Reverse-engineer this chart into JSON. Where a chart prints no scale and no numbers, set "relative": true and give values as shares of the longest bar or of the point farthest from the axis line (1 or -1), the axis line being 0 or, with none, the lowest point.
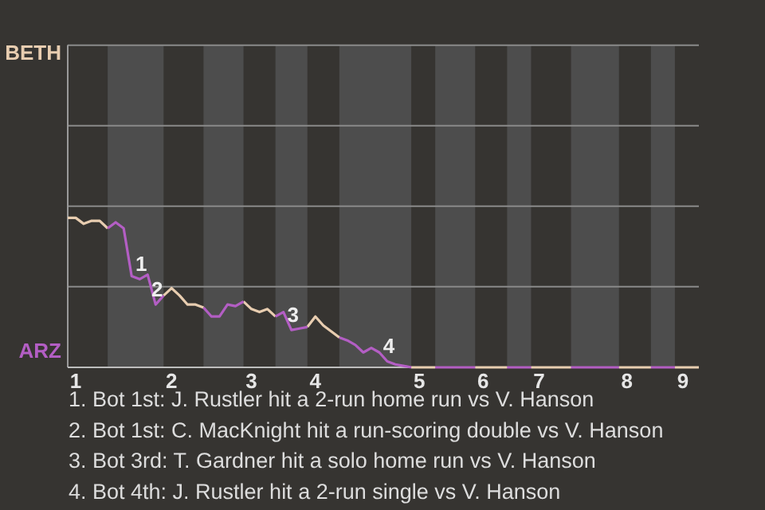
{
  "chart_data": {
    "type": "line",
    "relative": true,
    "categories": [
      null,
      "1",
      null,
      null,
      null,
      null,
      null,
      null,
      null,
      null,
      null,
      null,
      null,
      "2",
      null,
      null,
      null,
      null,
      null,
      null,
      null,
      null,
      null,
      "3",
      null,
      null,
      null,
      null,
      null,
      null,
      null,
      "4",
      null,
      null,
      null,
      null,
      null,
      null,
      null,
      null,
      null,
      null,
      null,
      null,
      "5",
      null,
      null,
      null,
      null,
      null,
      null,
      null,
      "6",
      null,
      null,
      null,
      null,
      null,
      null,
      "7",
      null,
      null,
      null,
      null,
      null,
      null,
      null,
      null,
      null,
      null,
      "8",
      null,
      null,
      null,
      null,
      null,
      null,
      "9",
      null,
      null
    ],
    "ref_lines": [
      {
        "axis": "y",
        "value": 0.539,
        "color": "#8a8a8a"
      },
      {
        "axis": "y",
        "value": 1.078,
        "color": "#8a8a8a"
      },
      {
        "axis": "y",
        "value": 1.616,
        "color": "#8a8a8a"
      },
      {
        "axis": "y",
        "value": 2.155,
        "color": "#8a8a8a"
      }
    ],
    "marker": "none",
    "series": [
      {
        "name": "BETH",
        "color": "#e8cdb0",
        "values": [
          1.0,
          1.0,
          0.96,
          0.98,
          0.98,
          0.93,
          null,
          null,
          null,
          null,
          null,
          null,
          0.48,
          0.53,
          0.48,
          0.42,
          0.42,
          0.4,
          null,
          null,
          null,
          null,
          0.44,
          0.39,
          0.37,
          0.39,
          0.34,
          null,
          null,
          null,
          0.27,
          0.34,
          0.28,
          0.24,
          0.2,
          null,
          null,
          null,
          null,
          null,
          null,
          null,
          null,
          0,
          0,
          0,
          0,
          null,
          null,
          null,
          null,
          0,
          0,
          0,
          0,
          0,
          null,
          null,
          0,
          0,
          0,
          0,
          0,
          0,
          null,
          null,
          null,
          null,
          null,
          0,
          0,
          0,
          0,
          0,
          null,
          null,
          0,
          0,
          0,
          0
        ]
      },
      {
        "name": "ARZ",
        "color": "#b35ec4",
        "values": [
          null,
          null,
          null,
          null,
          null,
          0.93,
          0.97,
          0.93,
          0.61,
          0.59,
          0.62,
          0.42,
          0.48,
          null,
          null,
          null,
          null,
          0.4,
          0.34,
          0.34,
          0.42,
          0.41,
          0.44,
          null,
          null,
          null,
          0.34,
          0.37,
          0.25,
          0.26,
          0.27,
          null,
          null,
          null,
          0.2,
          0.18,
          0.15,
          0.1,
          0.13,
          0.1,
          0.04,
          0.02,
          0.01,
          0,
          null,
          null,
          0,
          0,
          0,
          0,
          0,
          0,
          null,
          null,
          null,
          0,
          0,
          0,
          0,
          null,
          null,
          null,
          null,
          0,
          0,
          0,
          0,
          0,
          0,
          0,
          null,
          null,
          null,
          0,
          0,
          0,
          0,
          null,
          null,
          null
        ]
      }
    ],
    "annotations": [
      {
        "text": "1",
        "y": 0.59
      },
      {
        "text": "2",
        "y": 0.42
      },
      {
        "text": "3",
        "y": 0.25
      },
      {
        "text": "4",
        "y": 0.04
      },
      "1. Bot 1st: J. Rustler hit a 2-run home run vs V. Hanson",
      "2. Bot 1st: C. MacKnight hit a run-scoring double vs V. Hanson",
      "3. Bot 3rd: T. Gardner hit a solo home run vs V. Hanson",
      "4. Bot 4th: J. Rustler hit a 2-run single vs V. Hanson"
    ]
  }
}
